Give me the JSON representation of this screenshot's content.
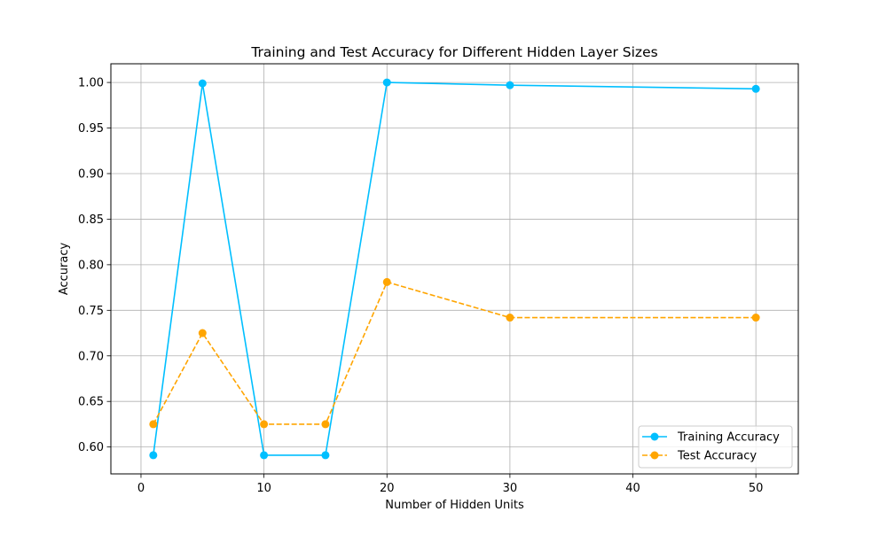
{
  "chart_data": {
    "type": "line",
    "title": "Training and Test Accuracy for Different Hidden Layer Sizes",
    "xlabel": "Number of Hidden Units",
    "ylabel": "Accuracy",
    "x": [
      1,
      5,
      10,
      15,
      20,
      30,
      50
    ],
    "xlim": [
      -2.45,
      53.45
    ],
    "ylim": [
      0.5705,
      1.0205
    ],
    "xticks": [
      0,
      10,
      20,
      30,
      40,
      50
    ],
    "xtick_labels": [
      "0",
      "10",
      "20",
      "30",
      "40",
      "50"
    ],
    "yticks": [
      0.6,
      0.65,
      0.7,
      0.75,
      0.8,
      0.85,
      0.9,
      0.95,
      1.0
    ],
    "ytick_labels": [
      "0.60",
      "0.65",
      "0.70",
      "0.75",
      "0.80",
      "0.85",
      "0.90",
      "0.95",
      "1.00"
    ],
    "grid": true,
    "legend_position": "lower-right",
    "series": [
      {
        "name": "Training Accuracy",
        "values": [
          0.591,
          0.999,
          0.591,
          0.591,
          1.0,
          0.997,
          0.993
        ],
        "color": "#00bfff",
        "linestyle": "solid",
        "marker": "circle"
      },
      {
        "name": "Test Accuracy",
        "values": [
          0.625,
          0.725,
          0.625,
          0.625,
          0.781,
          0.742,
          0.742
        ],
        "color": "#ffa500",
        "linestyle": "dashed",
        "marker": "circle"
      }
    ]
  }
}
